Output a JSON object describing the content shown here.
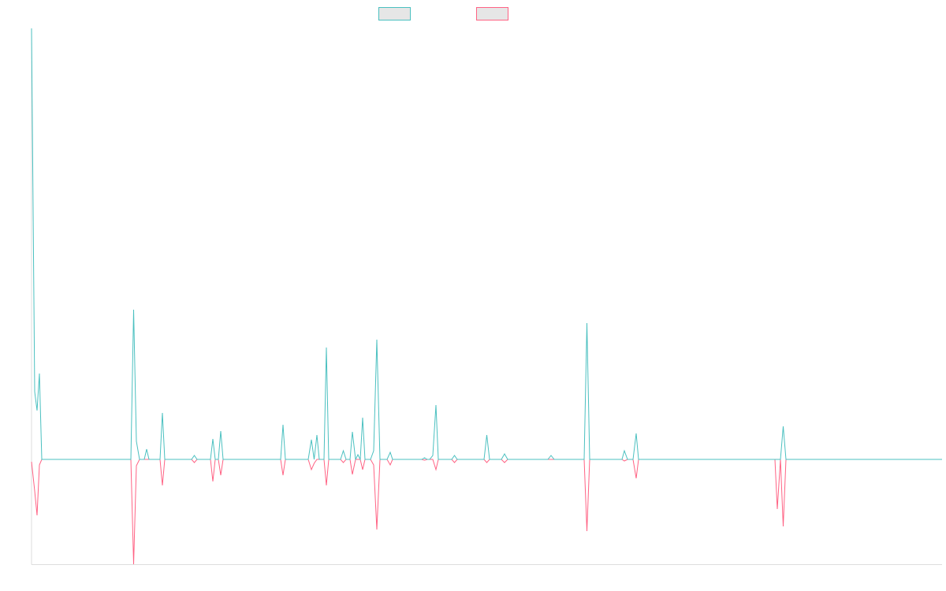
{
  "chart_data": {
    "type": "line",
    "x": [
      0,
      4,
      7,
      10,
      13,
      126,
      129.5,
      133,
      137,
      143,
      146,
      149,
      163,
      166,
      169,
      203,
      206.5,
      210,
      227,
      230,
      233,
      237,
      240,
      243,
      316,
      319,
      322,
      351,
      355,
      358.5,
      362,
      365,
      371,
      374,
      377,
      392,
      395.5,
      399,
      404,
      407,
      411,
      414,
      417,
      420,
      423,
      430,
      434,
      438,
      442,
      451,
      455,
      458,
      495,
      498.5,
      502,
      505,
      509,
      513,
      516,
      533,
      536.5,
      540,
      574,
      577.5,
      581,
      596,
      600,
      604,
      655,
      659,
      663,
      701,
      704.5,
      708,
      749,
      752,
      756,
      763,
      767,
      770,
      943,
      946,
      950,
      953.5,
      957,
      1155
    ],
    "series": [
      {
        "color": "#ff6384",
        "values": [
          -3,
          -40,
          -71,
          -7,
          0,
          0,
          -133,
          -8,
          0,
          0,
          0,
          0,
          0,
          -33,
          0,
          0,
          -4,
          0,
          0,
          -28,
          0,
          0,
          -20,
          0,
          0,
          -20,
          0,
          0,
          -13,
          -5,
          0,
          0,
          0,
          -33,
          0,
          0,
          -4,
          0,
          0,
          -19,
          0,
          0,
          0,
          -13,
          0,
          0,
          -7,
          -89,
          0,
          0,
          -7,
          0,
          0,
          -1,
          0,
          0,
          0,
          -13,
          0,
          0,
          -4,
          0,
          0,
          -4,
          0,
          0,
          -4,
          0,
          0,
          0,
          0,
          0,
          -91,
          0,
          0,
          -2,
          0,
          0,
          -24,
          0,
          0,
          -63,
          0,
          -85,
          0,
          0
        ]
      },
      {
        "color": "#4bc0c0",
        "values": [
          547,
          86,
          62,
          109,
          0,
          0,
          190,
          23,
          0,
          0,
          13,
          0,
          0,
          59,
          0,
          0,
          5,
          0,
          0,
          26,
          0,
          0,
          36,
          0,
          0,
          44,
          0,
          0,
          25,
          0,
          31,
          0,
          0,
          142,
          0,
          0,
          11,
          0,
          0,
          35,
          0,
          6,
          0,
          53,
          0,
          0,
          11,
          152,
          0,
          0,
          9,
          0,
          0,
          2,
          0,
          0,
          5,
          69,
          0,
          0,
          5,
          0,
          0,
          31,
          0,
          0,
          7,
          0,
          0,
          5,
          0,
          0,
          173,
          0,
          0,
          11,
          0,
          0,
          33,
          0,
          0,
          0,
          0,
          42,
          0,
          0
        ]
      }
    ],
    "legend_order": [
      1,
      0
    ],
    "legend": "top",
    "xlim": [
      0,
      1155
    ],
    "ylim": [
      -133,
      547
    ],
    "grid": false
  }
}
